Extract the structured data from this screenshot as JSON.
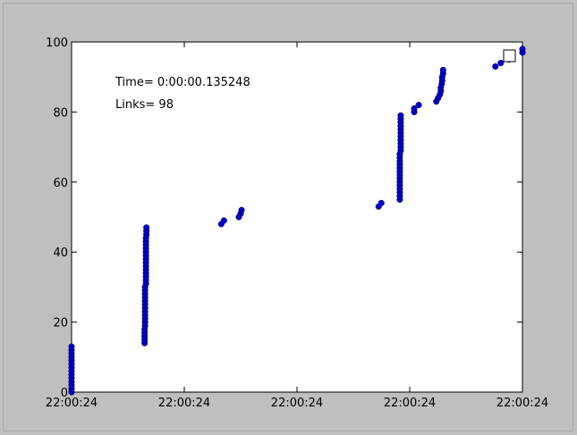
{
  "chart_data": {
    "type": "scatter",
    "title": "",
    "xlabel": "",
    "ylabel": "",
    "ylim": [
      0,
      100
    ],
    "yticks": [
      0,
      20,
      40,
      60,
      80,
      100
    ],
    "xticks": [
      "22:00:24",
      "22:00:24",
      "22:00:24",
      "22:00:24",
      "22:00:24"
    ],
    "grid": false,
    "annotations": {
      "time": "Time= 0:00:00.135248",
      "links": "Links= 98"
    },
    "marker_color": "#0000cc",
    "series": [
      {
        "values": [
          [
            0.0,
            0
          ],
          [
            0.0,
            1
          ],
          [
            0.0,
            2
          ],
          [
            0.0,
            3
          ],
          [
            0.0,
            4
          ],
          [
            0.0,
            5
          ],
          [
            0.0,
            6
          ],
          [
            0.0,
            7
          ],
          [
            0.0,
            8
          ],
          [
            0.0,
            9
          ],
          [
            0.0,
            10
          ],
          [
            0.0,
            11
          ],
          [
            0.0,
            12
          ],
          [
            0.0,
            13
          ],
          [
            0.162,
            14
          ],
          [
            0.162,
            15
          ],
          [
            0.162,
            16
          ],
          [
            0.162,
            17
          ],
          [
            0.162,
            18
          ],
          [
            0.163,
            19
          ],
          [
            0.163,
            20
          ],
          [
            0.163,
            21
          ],
          [
            0.163,
            22
          ],
          [
            0.163,
            23
          ],
          [
            0.163,
            24
          ],
          [
            0.163,
            25
          ],
          [
            0.163,
            26
          ],
          [
            0.163,
            27
          ],
          [
            0.163,
            28
          ],
          [
            0.163,
            29
          ],
          [
            0.163,
            30
          ],
          [
            0.165,
            31
          ],
          [
            0.165,
            32
          ],
          [
            0.165,
            33
          ],
          [
            0.165,
            34
          ],
          [
            0.165,
            35
          ],
          [
            0.165,
            36
          ],
          [
            0.165,
            37
          ],
          [
            0.165,
            38
          ],
          [
            0.165,
            39
          ],
          [
            0.165,
            40
          ],
          [
            0.165,
            41
          ],
          [
            0.165,
            42
          ],
          [
            0.165,
            43
          ],
          [
            0.165,
            44
          ],
          [
            0.166,
            45
          ],
          [
            0.166,
            46
          ],
          [
            0.166,
            47
          ],
          [
            0.332,
            48
          ],
          [
            0.338,
            49
          ],
          [
            0.371,
            50
          ],
          [
            0.375,
            51
          ],
          [
            0.377,
            52
          ],
          [
            0.681,
            53
          ],
          [
            0.687,
            54
          ],
          [
            0.728,
            55
          ],
          [
            0.728,
            56
          ],
          [
            0.728,
            57
          ],
          [
            0.728,
            58
          ],
          [
            0.728,
            59
          ],
          [
            0.728,
            60
          ],
          [
            0.728,
            61
          ],
          [
            0.728,
            62
          ],
          [
            0.728,
            63
          ],
          [
            0.728,
            64
          ],
          [
            0.728,
            65
          ],
          [
            0.728,
            66
          ],
          [
            0.728,
            67
          ],
          [
            0.728,
            68
          ],
          [
            0.73,
            69
          ],
          [
            0.73,
            70
          ],
          [
            0.73,
            71
          ],
          [
            0.73,
            72
          ],
          [
            0.73,
            73
          ],
          [
            0.73,
            74
          ],
          [
            0.73,
            75
          ],
          [
            0.73,
            76
          ],
          [
            0.73,
            77
          ],
          [
            0.73,
            78
          ],
          [
            0.73,
            79
          ],
          [
            0.76,
            80
          ],
          [
            0.76,
            81
          ],
          [
            0.77,
            82
          ],
          [
            0.809,
            83
          ],
          [
            0.813,
            84
          ],
          [
            0.817,
            85
          ],
          [
            0.819,
            86
          ],
          [
            0.819,
            87
          ],
          [
            0.821,
            88
          ],
          [
            0.822,
            89
          ],
          [
            0.822,
            90
          ],
          [
            0.824,
            91
          ],
          [
            0.824,
            92
          ],
          [
            0.94,
            93
          ],
          [
            0.952,
            94
          ],
          [
            0.97,
            95
          ],
          [
            0.974,
            96
          ],
          [
            1.0,
            97
          ],
          [
            1.0,
            98
          ]
        ]
      }
    ]
  }
}
